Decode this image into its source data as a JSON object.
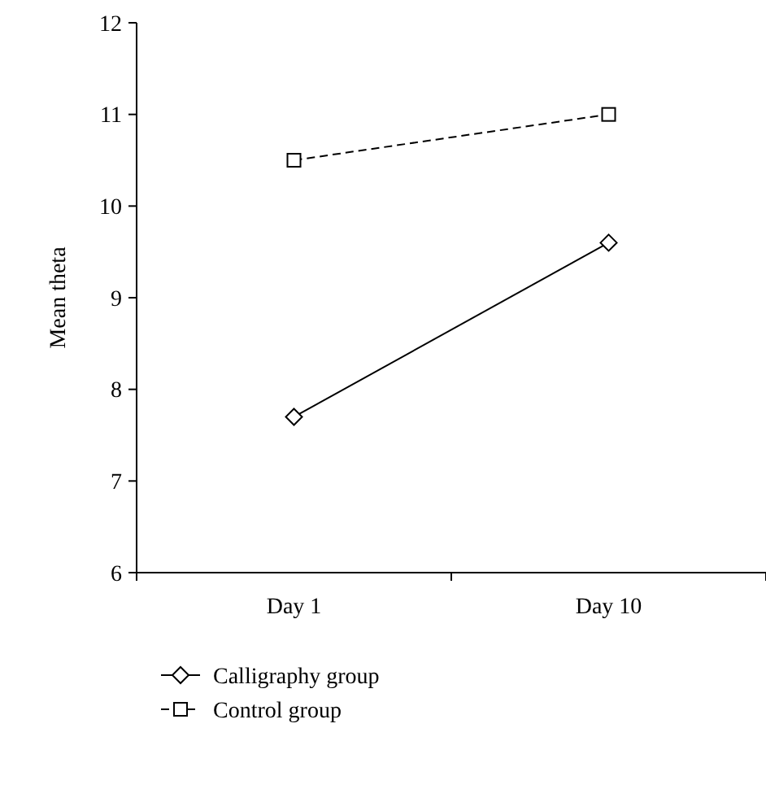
{
  "chart_data": {
    "type": "line",
    "ylabel": "Mean theta",
    "categories": [
      "Day 1",
      "Day 10"
    ],
    "ylim": [
      6,
      12
    ],
    "yticks": [
      6,
      7,
      8,
      9,
      10,
      11,
      12
    ],
    "grid": false,
    "legend": "bottom left",
    "series": [
      {
        "name": "Calligraphy group",
        "color": "#000000",
        "values": [
          7.7,
          9.6
        ],
        "marker": "diamond",
        "line_style": "solid"
      },
      {
        "name": "Control group",
        "color": "#000000",
        "values": [
          10.5,
          11.0
        ],
        "marker": "square",
        "line_style": "dashed"
      }
    ]
  }
}
